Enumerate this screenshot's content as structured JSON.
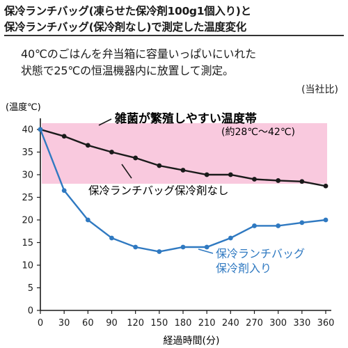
{
  "header": {
    "title_line1": "保冷ランチバッグ(凍らせた保冷剤100g1個入り)と",
    "title_line2": "保冷ランチバッグ(保冷剤なし)で測定した温度変化",
    "desc_line1": "40℃のごはんを弁当箱に容量いっぱいにいれた",
    "desc_line2": "状態で25℃の恒温機器内に放置して測定。",
    "note": "(当社比)"
  },
  "chart_data": {
    "type": "line",
    "ylabel": "(温度℃)",
    "xlabel": "経過時間(分)",
    "xlim": [
      0,
      360
    ],
    "ylim": [
      0,
      40
    ],
    "x_ticks": [
      0,
      30,
      60,
      90,
      120,
      150,
      180,
      210,
      240,
      270,
      300,
      330,
      360
    ],
    "y_ticks": [
      0,
      5,
      10,
      15,
      20,
      25,
      30,
      35,
      40
    ],
    "band": {
      "from": 28,
      "to": 42,
      "color": "#f9c9de",
      "label": "雑菌が繁殖しやすい温度帯",
      "sublabel": "(約28℃〜42℃)"
    },
    "series": [
      {
        "name": "保冷ランチバッグ保冷剤なし",
        "color": "#1a1a1a",
        "x": [
          0,
          30,
          60,
          90,
          120,
          150,
          180,
          210,
          240,
          270,
          300,
          330,
          360
        ],
        "y": [
          40,
          38.5,
          36.5,
          35,
          33.7,
          32,
          31,
          30,
          30,
          29,
          28.7,
          28.5,
          27.5
        ]
      },
      {
        "name_line1": "保冷ランチバッグ",
        "name_line2": "保冷剤入り",
        "color": "#2f79c1",
        "x": [
          0,
          30,
          60,
          90,
          120,
          150,
          180,
          210,
          240,
          270,
          300,
          330,
          360
        ],
        "y": [
          40,
          26.5,
          20,
          16,
          14,
          13,
          14,
          14,
          16,
          18.7,
          18.7,
          19.4,
          20
        ]
      }
    ]
  }
}
